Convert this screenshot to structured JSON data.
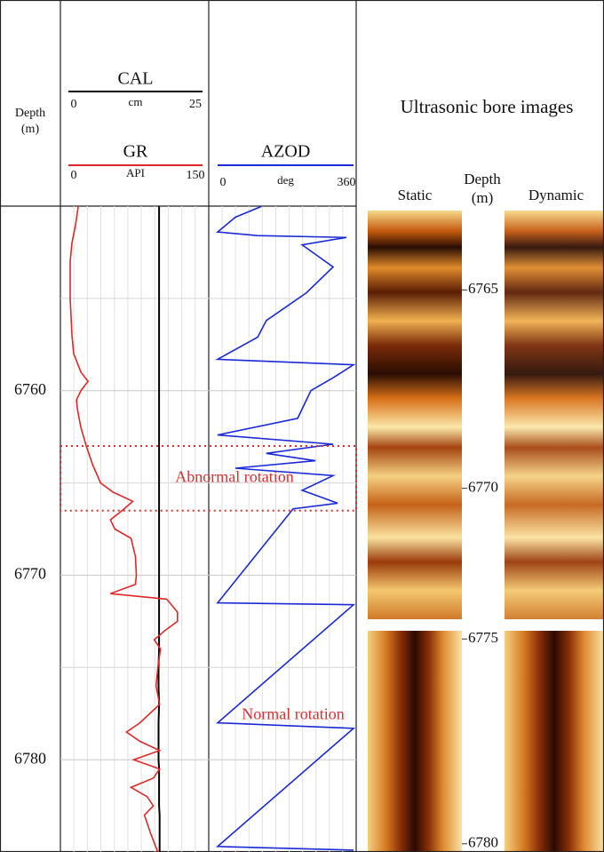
{
  "depth_axis": {
    "label": [
      "Depth",
      "(m)"
    ],
    "ylim": [
      6750,
      6785
    ],
    "yticks": [
      6760,
      6770,
      6780
    ],
    "minor_yticks": [
      6755,
      6765,
      6775
    ]
  },
  "chart_data": [
    {
      "type": "line",
      "x": [
        6750,
        6751,
        6752,
        6753,
        6754,
        6755,
        6756,
        6757,
        6758,
        6759,
        6759.5,
        6760,
        6760.5,
        6761,
        6762,
        6763,
        6764,
        6765,
        6765.5,
        6766,
        6766.5,
        6767,
        6767.5,
        6768,
        6769,
        6770,
        6770.5,
        6771,
        6771.3,
        6772,
        6772.5,
        6773,
        6773.5,
        6774,
        6775,
        6776,
        6777,
        6778,
        6778.5,
        6779,
        6779.5,
        6780,
        6780.5,
        6781,
        6781.5,
        6782,
        6782.5,
        6783,
        6784,
        6785
      ],
      "series": [
        {
          "name": "CAL",
          "unit": "cm",
          "color": "#000000",
          "xlim": [
            0,
            25
          ],
          "xticks": [
            0,
            25
          ],
          "values": [
            16.9,
            16.9,
            16.9,
            16.9,
            16.9,
            16.9,
            16.9,
            16.9,
            16.9,
            16.9,
            16.9,
            16.9,
            16.9,
            16.9,
            16.9,
            16.9,
            16.9,
            16.9,
            16.9,
            16.9,
            16.9,
            16.9,
            16.9,
            16.9,
            16.9,
            16.9,
            16.9,
            16.9,
            16.9,
            16.9,
            16.9,
            16.9,
            16.9,
            16.9,
            16.8,
            16.8,
            16.9,
            16.8,
            16.8,
            16.8,
            16.8,
            16.8,
            16.9,
            16.9,
            16.9,
            16.9,
            16.9,
            17.0,
            17.0,
            17.0
          ]
        },
        {
          "name": "GR",
          "unit": "API",
          "color": "#e02828",
          "xlim": [
            0,
            150
          ],
          "xticks": [
            0,
            150
          ],
          "values": [
            11,
            8,
            4,
            2,
            2,
            2,
            3,
            4,
            6,
            14,
            22,
            14,
            9,
            10,
            14,
            20,
            27,
            36,
            50,
            72,
            60,
            47,
            52,
            70,
            75,
            76,
            75,
            47,
            110,
            122,
            122,
            108,
            96,
            103,
            100,
            98,
            102,
            80,
            65,
            80,
            102,
            73,
            102,
            95,
            70,
            88,
            95,
            85,
            92,
            100
          ]
        }
      ]
    },
    {
      "type": "line",
      "x": [
        6750.0,
        6750.6,
        6751.4,
        6751.6,
        6751.7,
        6752.1,
        6753.3,
        6754.7,
        6756.2,
        6757.1,
        6758.3,
        6758.6,
        6759.3,
        6760.0,
        6761.5,
        6762.4,
        6762.9,
        6763.4,
        6763.8,
        6764.2,
        6764.6,
        6765.4,
        6766.1,
        6766.4,
        6771.5,
        6771.6,
        6778.0,
        6778.3,
        6784.7,
        6784.9
      ],
      "series": [
        {
          "name": "AZOD",
          "unit": "deg",
          "color": "#1a2ad6",
          "xlim": [
            0,
            360
          ],
          "xticks": [
            0,
            360
          ],
          "values": [
            118,
            47,
            0,
            106,
            341,
            224,
            306,
            235,
            129,
            106,
            0,
            360,
            306,
            247,
            212,
            0,
            306,
            129,
            259,
            47,
            306,
            224,
            318,
            200,
            0,
            360,
            0,
            360,
            0,
            360
          ]
        }
      ]
    },
    {
      "type": "image",
      "title": "Ultrasonic bore images",
      "depth_label": [
        "Depth",
        "(m)"
      ],
      "panels": [
        "Static",
        "Dynamic"
      ],
      "segments": [
        {
          "ylim": [
            6763,
            6773.3
          ],
          "yticks": [
            6765,
            6770
          ]
        },
        {
          "ylim": [
            6774.8,
            6780.2
          ],
          "yticks": [
            6775,
            6780
          ]
        }
      ]
    }
  ],
  "annotations": [
    {
      "text": "Abnormal rotation",
      "ylim": [
        6763,
        6766.5
      ],
      "color": "#d83030"
    },
    {
      "text": "Normal rotation",
      "y": 6777.6,
      "color": "#d83030"
    }
  ]
}
